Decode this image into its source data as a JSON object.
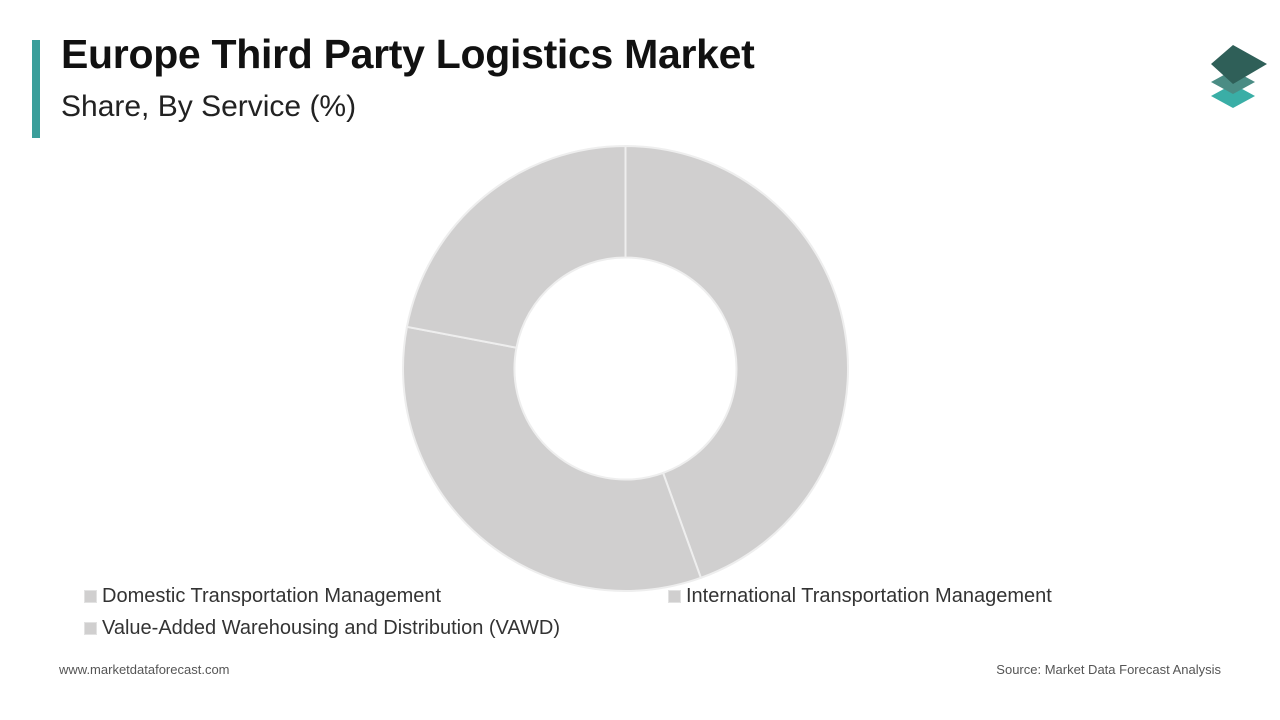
{
  "header": {
    "title": "Europe Third Party Logistics Market",
    "subtitle": "Share, By Service (%)",
    "accent_color": "#3a9e9a"
  },
  "logo": {
    "icon": "stacked-layers-icon",
    "colors": [
      "#2f5f58",
      "#4a8c84",
      "#3aaea6"
    ]
  },
  "chart_data": {
    "type": "pie",
    "donut": true,
    "categories": [
      "Domestic Transportation Management",
      "International Transportation Management",
      "Value-Added Warehousing and Distribution (VAWD)"
    ],
    "values": [
      44.5,
      33.5,
      22.0
    ],
    "slice_color": "#d0cfcf",
    "divider_color": "#eeeeee",
    "legend_position": "bottom"
  },
  "legend": {
    "items": [
      "Domestic Transportation Management",
      "International Transportation Management",
      "Value-Added Warehousing and Distribution (VAWD)"
    ],
    "swatch_color": "#d0cfcf"
  },
  "footer": {
    "website": "www.marketdataforecast.com",
    "source": "Source: Market Data Forecast Analysis"
  }
}
